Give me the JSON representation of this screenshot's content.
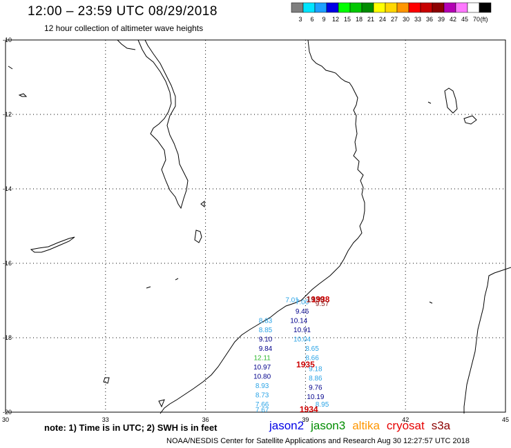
{
  "title": "12:00 – 23:59 UTC 08/29/2018",
  "subtitle": "12 hour collection of altimeter wave heights",
  "legend": {
    "swatches": [
      {
        "color": "#7f7f7f",
        "label": "3"
      },
      {
        "color": "#00e5ff",
        "label": "6"
      },
      {
        "color": "#1ea0ff",
        "label": "9"
      },
      {
        "color": "#0000e6",
        "label": "12"
      },
      {
        "color": "#00ff00",
        "label": "15"
      },
      {
        "color": "#00c800",
        "label": "18"
      },
      {
        "color": "#008c00",
        "label": "21"
      },
      {
        "color": "#ffff00",
        "label": "24"
      },
      {
        "color": "#ffd700",
        "label": "27"
      },
      {
        "color": "#ff9600",
        "label": "30"
      },
      {
        "color": "#ff0000",
        "label": "33"
      },
      {
        "color": "#c80000",
        "label": "36"
      },
      {
        "color": "#8c0000",
        "label": "39"
      },
      {
        "color": "#b400b4",
        "label": "42"
      },
      {
        "color": "#ff78ff",
        "label": "45"
      },
      {
        "color": "#ffffff",
        "label": "70"
      },
      {
        "color": "#000000",
        "label": ""
      }
    ],
    "unit": "(ft)"
  },
  "axes": {
    "lat_labels": [
      "-10",
      "-12",
      "-14",
      "-16",
      "-18",
      "-20"
    ],
    "lon_labels": [
      "30",
      "33",
      "36",
      "39",
      "42",
      "45"
    ]
  },
  "observations": [
    {
      "text": "7.01",
      "color": "#29a3e6",
      "lon": 38.6,
      "lat": -17.05
    },
    {
      "text": "7.00",
      "color": "#29a3e6",
      "lon": 38.9,
      "lat": -17.1
    },
    {
      "text": "1939",
      "color": "#8b1a1a",
      "lon": 39.3,
      "lat": -17.05
    },
    {
      "text": "1938",
      "color": "#cc0000",
      "lon": 39.45,
      "lat": -17.05
    },
    {
      "text": "9.57",
      "color": "#8b1a1a",
      "lon": 39.5,
      "lat": -17.15
    },
    {
      "text": "9.46",
      "color": "#00008b",
      "lon": 38.9,
      "lat": -17.35
    },
    {
      "text": "8.83",
      "color": "#29a3e6",
      "lon": 37.8,
      "lat": -17.6
    },
    {
      "text": "10.14",
      "color": "#00008b",
      "lon": 38.8,
      "lat": -17.6
    },
    {
      "text": "8.85",
      "color": "#29a3e6",
      "lon": 37.8,
      "lat": -17.85
    },
    {
      "text": "10.91",
      "color": "#00008b",
      "lon": 38.9,
      "lat": -17.85
    },
    {
      "text": "9.10",
      "color": "#00008b",
      "lon": 37.8,
      "lat": -18.1
    },
    {
      "text": "10.04",
      "color": "#29a3e6",
      "lon": 38.9,
      "lat": -18.1
    },
    {
      "text": "9.84",
      "color": "#00008b",
      "lon": 37.8,
      "lat": -18.35
    },
    {
      "text": "8.65",
      "color": "#29a3e6",
      "lon": 39.2,
      "lat": -18.35
    },
    {
      "text": "12.11",
      "color": "#2eb82e",
      "lon": 37.7,
      "lat": -18.6
    },
    {
      "text": "8.66",
      "color": "#29a3e6",
      "lon": 39.2,
      "lat": -18.6
    },
    {
      "text": "10.97",
      "color": "#00008b",
      "lon": 37.7,
      "lat": -18.85
    },
    {
      "text": "1935",
      "color": "#cc0000",
      "lon": 39.0,
      "lat": -18.8
    },
    {
      "text": "9.18",
      "color": "#29a3e6",
      "lon": 39.3,
      "lat": -18.9
    },
    {
      "text": "10.80",
      "color": "#00008b",
      "lon": 37.7,
      "lat": -19.1
    },
    {
      "text": "8.86",
      "color": "#29a3e6",
      "lon": 39.3,
      "lat": -19.15
    },
    {
      "text": "8.93",
      "color": "#29a3e6",
      "lon": 37.7,
      "lat": -19.35
    },
    {
      "text": "9.76",
      "color": "#00008b",
      "lon": 39.3,
      "lat": -19.4
    },
    {
      "text": "8.73",
      "color": "#29a3e6",
      "lon": 37.7,
      "lat": -19.6
    },
    {
      "text": "10.19",
      "color": "#00008b",
      "lon": 39.3,
      "lat": -19.65
    },
    {
      "text": "7.66",
      "color": "#29a3e6",
      "lon": 37.7,
      "lat": -19.85
    },
    {
      "text": "8.95",
      "color": "#29a3e6",
      "lon": 39.5,
      "lat": -19.85
    },
    {
      "text": "7.67",
      "color": "#29a3e6",
      "lon": 37.7,
      "lat": -20.0
    },
    {
      "text": "1934",
      "color": "#cc0000",
      "lon": 39.1,
      "lat": -20.0
    }
  ],
  "note": "note: 1) Time is in UTC; 2) SWH is in feet",
  "satellites": [
    {
      "name": "jason2",
      "color": "#0000e6"
    },
    {
      "name": "jason3",
      "color": "#008c00"
    },
    {
      "name": "altika",
      "color": "#ff9600"
    },
    {
      "name": "cryosat",
      "color": "#e60000"
    },
    {
      "name": "s3a",
      "color": "#8c0000"
    }
  ],
  "footer": "NOAA/NESDIS Center for Satellite Applications and Research   Aug 30 12:27:57 UTC 2018"
}
